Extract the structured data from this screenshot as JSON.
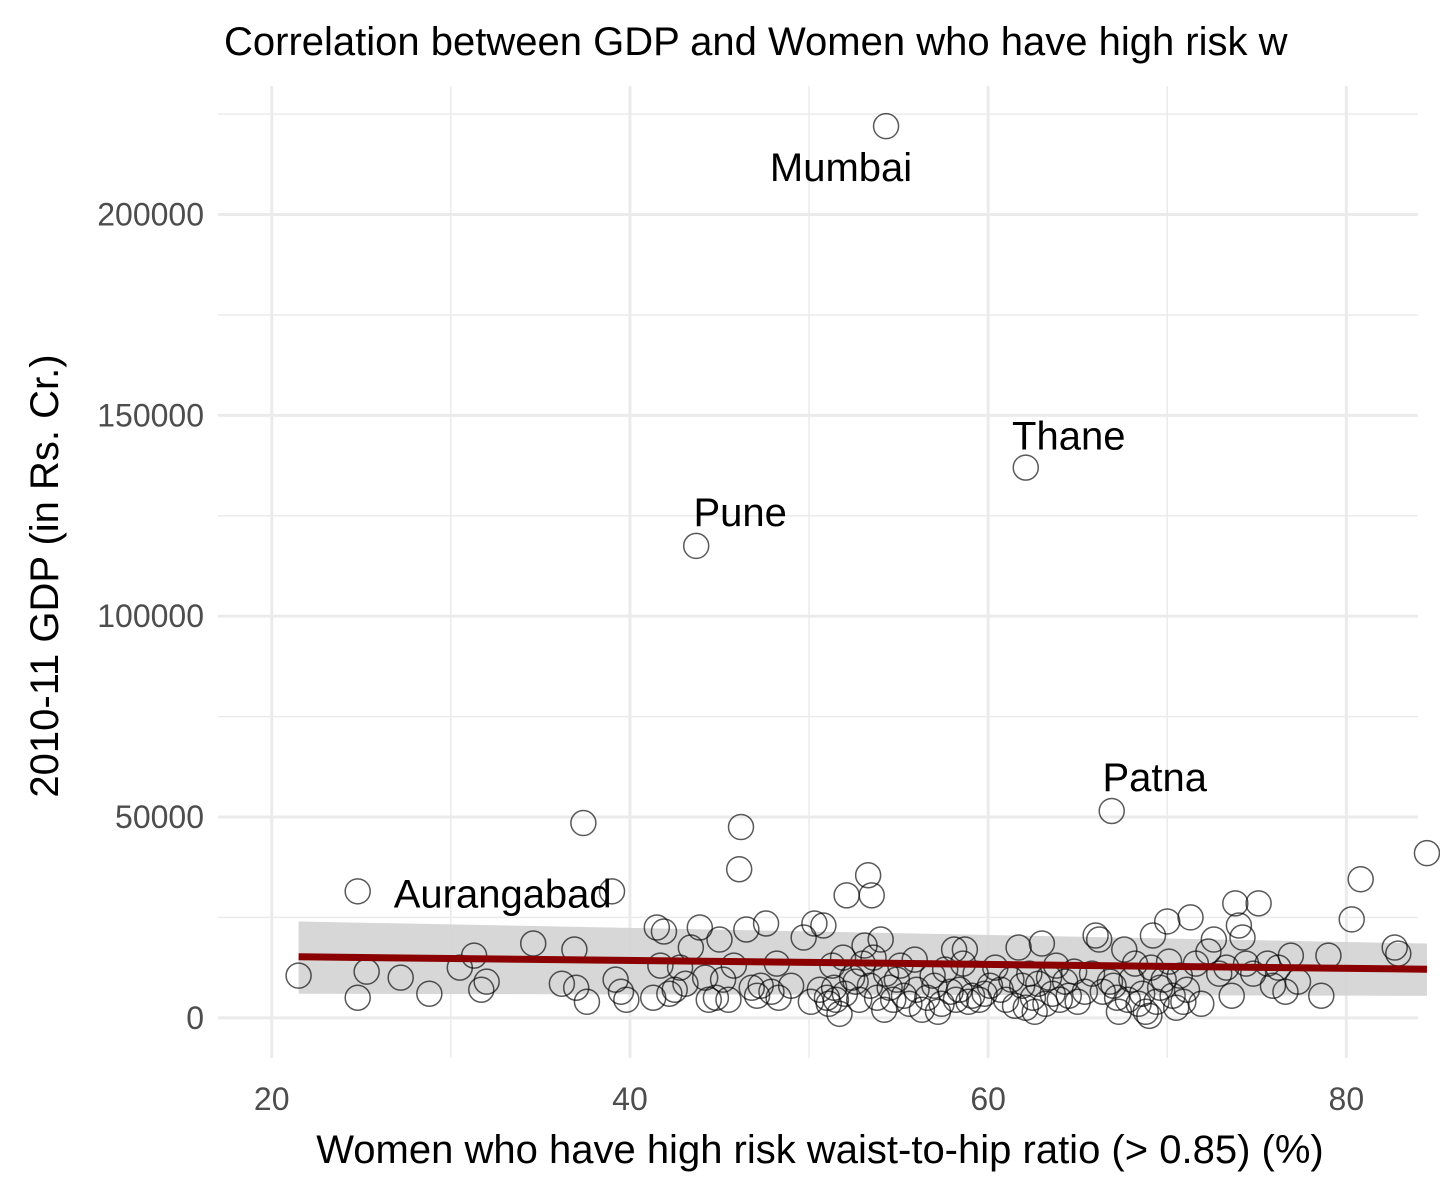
{
  "chart_data": {
    "type": "scatter",
    "title": "Correlation between GDP and Women who have high risk w",
    "xlabel": "Women who have high risk waist-to-hip ratio (> 0.85) (%)",
    "ylabel": "2010-11 GDP (in Rs. Cr.)",
    "xlim": [
      17,
      84
    ],
    "ylim": [
      -10000,
      232000
    ],
    "xticks": [
      20,
      40,
      60,
      80
    ],
    "yticks": [
      0,
      50000,
      100000,
      150000,
      200000
    ],
    "xtick_labels": [
      "20",
      "40",
      "60",
      "80"
    ],
    "ytick_labels": [
      "0",
      "50000",
      "100000",
      "150000",
      "200000"
    ],
    "grid": true,
    "trend": {
      "type": "linear",
      "x": [
        21.5,
        84.5
      ],
      "y": [
        15200,
        12100
      ],
      "ci_lower": [
        6000,
        5500
      ],
      "ci_upper": [
        24000,
        18500
      ],
      "line_color": "#8b0000",
      "band_color": "#d3d3d3"
    },
    "labeled_points": [
      {
        "label": "Mumbai",
        "x": 54.3,
        "y": 222000
      },
      {
        "label": "Thane",
        "x": 62.1,
        "y": 137000
      },
      {
        "label": "Pune",
        "x": 43.7,
        "y": 117500
      },
      {
        "label": "Patna",
        "x": 66.9,
        "y": 51500
      },
      {
        "label": "Aurangabad",
        "x": 24.8,
        "y": 31500
      }
    ],
    "points": [
      [
        21.5,
        10500
      ],
      [
        24.8,
        5000
      ],
      [
        25.3,
        11500
      ],
      [
        27.2,
        10000
      ],
      [
        28.8,
        6000
      ],
      [
        30.5,
        12500
      ],
      [
        31.3,
        15500
      ],
      [
        31.7,
        7000
      ],
      [
        32.0,
        9000
      ],
      [
        34.6,
        18500
      ],
      [
        36.2,
        8500
      ],
      [
        36.9,
        17000
      ],
      [
        37.0,
        7500
      ],
      [
        37.4,
        48500
      ],
      [
        37.6,
        4000
      ],
      [
        39.0,
        31500
      ],
      [
        39.2,
        9500
      ],
      [
        39.5,
        6500
      ],
      [
        39.8,
        4500
      ],
      [
        41.3,
        5000
      ],
      [
        41.5,
        22500
      ],
      [
        41.7,
        13000
      ],
      [
        41.9,
        21500
      ],
      [
        42.2,
        6000
      ],
      [
        42.5,
        7000
      ],
      [
        42.8,
        12500
      ],
      [
        43.1,
        8500
      ],
      [
        43.4,
        17500
      ],
      [
        43.9,
        22500
      ],
      [
        44.2,
        10000
      ],
      [
        44.4,
        4500
      ],
      [
        44.8,
        5000
      ],
      [
        45.0,
        19500
      ],
      [
        45.2,
        9500
      ],
      [
        45.5,
        4500
      ],
      [
        45.8,
        13000
      ],
      [
        46.1,
        37000
      ],
      [
        46.2,
        47500
      ],
      [
        46.5,
        22000
      ],
      [
        46.8,
        7500
      ],
      [
        47.1,
        5500
      ],
      [
        47.3,
        8000
      ],
      [
        47.6,
        23500
      ],
      [
        47.9,
        6500
      ],
      [
        48.2,
        13500
      ],
      [
        48.3,
        5000
      ],
      [
        49.0,
        8000
      ],
      [
        49.7,
        20000
      ],
      [
        50.1,
        4000
      ],
      [
        50.3,
        23500
      ],
      [
        50.6,
        7000
      ],
      [
        50.8,
        23000
      ],
      [
        51.0,
        5000
      ],
      [
        51.1,
        3500
      ],
      [
        51.3,
        13000
      ],
      [
        51.4,
        7500
      ],
      [
        51.5,
        4500
      ],
      [
        51.7,
        1000
      ],
      [
        51.9,
        15000
      ],
      [
        52.0,
        6000
      ],
      [
        52.1,
        30500
      ],
      [
        52.4,
        10000
      ],
      [
        52.6,
        9000
      ],
      [
        52.8,
        4500
      ],
      [
        53.0,
        13500
      ],
      [
        53.1,
        18000
      ],
      [
        53.3,
        35500
      ],
      [
        53.4,
        8000
      ],
      [
        53.5,
        30500
      ],
      [
        53.6,
        15000
      ],
      [
        53.8,
        5000
      ],
      [
        54.0,
        19500
      ],
      [
        54.2,
        2000
      ],
      [
        54.3,
        11000
      ],
      [
        54.5,
        7500
      ],
      [
        54.7,
        4500
      ],
      [
        54.9,
        9500
      ],
      [
        55.1,
        13000
      ],
      [
        55.3,
        5500
      ],
      [
        55.6,
        3500
      ],
      [
        55.9,
        14500
      ],
      [
        56.0,
        7000
      ],
      [
        56.3,
        2000
      ],
      [
        56.6,
        5000
      ],
      [
        56.9,
        10500
      ],
      [
        57.0,
        8000
      ],
      [
        57.2,
        1500
      ],
      [
        57.4,
        3500
      ],
      [
        57.6,
        12000
      ],
      [
        57.9,
        6500
      ],
      [
        58.1,
        17000
      ],
      [
        58.2,
        4500
      ],
      [
        58.4,
        7000
      ],
      [
        58.6,
        13500
      ],
      [
        58.7,
        17000
      ],
      [
        58.9,
        4000
      ],
      [
        59.1,
        5500
      ],
      [
        59.3,
        11000
      ],
      [
        59.5,
        4500
      ],
      [
        59.8,
        6000
      ],
      [
        60.1,
        8000
      ],
      [
        60.4,
        12500
      ],
      [
        60.7,
        7000
      ],
      [
        61.0,
        4500
      ],
      [
        61.3,
        9500
      ],
      [
        61.5,
        3000
      ],
      [
        61.7,
        17500
      ],
      [
        61.9,
        8000
      ],
      [
        62.1,
        2500
      ],
      [
        62.3,
        11000
      ],
      [
        62.5,
        5000
      ],
      [
        62.6,
        1500
      ],
      [
        62.8,
        8500
      ],
      [
        63.0,
        18500
      ],
      [
        63.2,
        3500
      ],
      [
        63.4,
        10000
      ],
      [
        63.6,
        6000
      ],
      [
        63.8,
        13000
      ],
      [
        64.0,
        4500
      ],
      [
        64.3,
        9000
      ],
      [
        64.5,
        5500
      ],
      [
        64.8,
        11500
      ],
      [
        65.0,
        4000
      ],
      [
        65.4,
        6500
      ],
      [
        65.8,
        11000
      ],
      [
        66.0,
        20500
      ],
      [
        66.2,
        19500
      ],
      [
        66.4,
        6500
      ],
      [
        66.8,
        9000
      ],
      [
        67.0,
        8000
      ],
      [
        67.2,
        5000
      ],
      [
        67.3,
        1500
      ],
      [
        67.6,
        17000
      ],
      [
        67.8,
        4500
      ],
      [
        68.0,
        9500
      ],
      [
        68.2,
        13500
      ],
      [
        68.4,
        3500
      ],
      [
        68.6,
        6000
      ],
      [
        68.8,
        1500
      ],
      [
        69.0,
        500
      ],
      [
        69.1,
        12500
      ],
      [
        69.2,
        20500
      ],
      [
        69.4,
        4000
      ],
      [
        69.6,
        7500
      ],
      [
        69.8,
        9500
      ],
      [
        70.0,
        24000
      ],
      [
        70.1,
        14000
      ],
      [
        70.3,
        5500
      ],
      [
        70.5,
        2500
      ],
      [
        70.7,
        10500
      ],
      [
        70.9,
        4000
      ],
      [
        71.1,
        7000
      ],
      [
        71.3,
        25000
      ],
      [
        71.6,
        13500
      ],
      [
        71.9,
        3500
      ],
      [
        72.3,
        16500
      ],
      [
        72.6,
        19500
      ],
      [
        72.9,
        11000
      ],
      [
        73.3,
        12500
      ],
      [
        73.6,
        5500
      ],
      [
        73.8,
        28500
      ],
      [
        74.0,
        23000
      ],
      [
        74.2,
        20000
      ],
      [
        74.4,
        13500
      ],
      [
        74.8,
        11000
      ],
      [
        75.1,
        28500
      ],
      [
        75.6,
        13500
      ],
      [
        75.9,
        8000
      ],
      [
        76.2,
        12500
      ],
      [
        76.6,
        6500
      ],
      [
        76.9,
        15500
      ],
      [
        77.3,
        9000
      ],
      [
        78.6,
        5500
      ],
      [
        79.0,
        15500
      ],
      [
        80.3,
        24500
      ],
      [
        80.8,
        34500
      ],
      [
        82.7,
        17500
      ],
      [
        82.9,
        16000
      ],
      [
        84.5,
        41000
      ]
    ]
  }
}
